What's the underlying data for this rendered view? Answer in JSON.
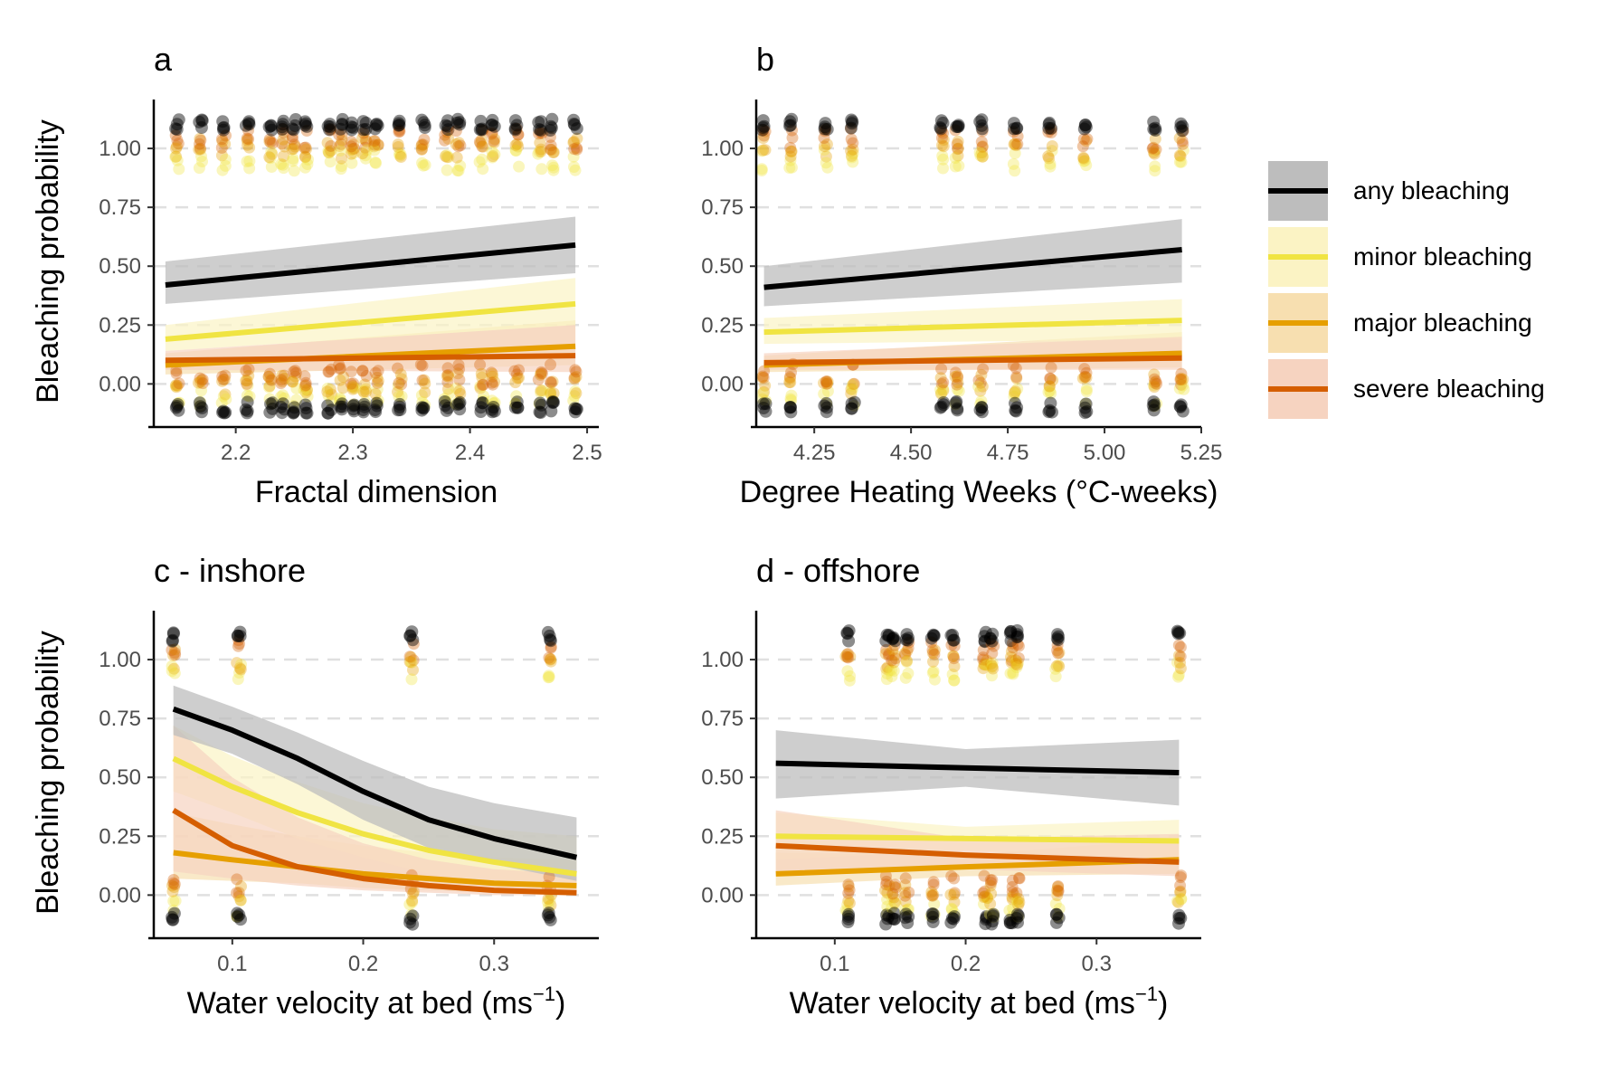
{
  "legend": {
    "items": [
      {
        "label": "any bleaching",
        "color": "#000000",
        "ribbon": "#bdbdbd"
      },
      {
        "label": "minor bleaching",
        "color": "#f0e442",
        "ribbon": "#fbf3c4"
      },
      {
        "label": "major bleaching",
        "color": "#e69f00",
        "ribbon": "#f7dfb0"
      },
      {
        "label": "severe bleaching",
        "color": "#d55e00",
        "ribbon": "#f6d3c0"
      }
    ]
  },
  "chart_data": [
    {
      "type": "line",
      "title": "a",
      "xlabel": "Fractal dimension",
      "ylabel": "Bleaching probability",
      "xlim": [
        2.13,
        2.51
      ],
      "ylim": [
        -0.16,
        1.2
      ],
      "xticks": [
        2.2,
        2.3,
        2.4,
        2.5
      ],
      "xticklabels": [
        "2.2",
        "2.3",
        "2.4",
        "2.5"
      ],
      "yticks": [
        0,
        0.25,
        0.5,
        0.75,
        1.0
      ],
      "yticklabels": [
        "0.00",
        "0.25",
        "0.50",
        "0.75",
        "1.00"
      ],
      "grid": "horizontal-dashed",
      "series": [
        {
          "name": "any bleaching",
          "x": [
            2.14,
            2.49
          ],
          "y": [
            0.42,
            0.59
          ],
          "lower": [
            0.34,
            0.47
          ],
          "upper": [
            0.52,
            0.71
          ]
        },
        {
          "name": "minor bleaching",
          "x": [
            2.14,
            2.49
          ],
          "y": [
            0.19,
            0.34
          ],
          "lower": [
            0.14,
            0.25
          ],
          "upper": [
            0.25,
            0.45
          ]
        },
        {
          "name": "major bleaching",
          "x": [
            2.14,
            2.49
          ],
          "y": [
            0.08,
            0.16
          ],
          "lower": [
            0.04,
            0.08
          ],
          "upper": [
            0.13,
            0.27
          ]
        },
        {
          "name": "severe bleaching",
          "x": [
            2.14,
            2.49
          ],
          "y": [
            0.1,
            0.12
          ],
          "lower": [
            0.06,
            0.05
          ],
          "upper": [
            0.14,
            0.25
          ]
        }
      ],
      "observations_x": [
        2.15,
        2.17,
        2.19,
        2.21,
        2.23,
        2.24,
        2.25,
        2.26,
        2.28,
        2.29,
        2.3,
        2.31,
        2.32,
        2.34,
        2.36,
        2.38,
        2.39,
        2.41,
        2.42,
        2.44,
        2.46,
        2.47,
        2.49
      ]
    },
    {
      "type": "line",
      "title": "b",
      "xlabel": "Degree Heating Weeks (°C-weeks)",
      "ylabel": "",
      "xlim": [
        4.1,
        5.25
      ],
      "ylim": [
        -0.16,
        1.2
      ],
      "xticks": [
        4.25,
        4.5,
        4.75,
        5.0,
        5.25
      ],
      "xticklabels": [
        "4.25",
        "4.50",
        "4.75",
        "5.00",
        "5.25"
      ],
      "yticks": [
        0,
        0.25,
        0.5,
        0.75,
        1.0
      ],
      "yticklabels": [
        "0.00",
        "0.25",
        "0.50",
        "0.75",
        "1.00"
      ],
      "grid": "horizontal-dashed",
      "series": [
        {
          "name": "any bleaching",
          "x": [
            4.12,
            5.2
          ],
          "y": [
            0.41,
            0.57
          ],
          "lower": [
            0.33,
            0.43
          ],
          "upper": [
            0.5,
            0.7
          ]
        },
        {
          "name": "minor bleaching",
          "x": [
            4.12,
            5.2
          ],
          "y": [
            0.22,
            0.27
          ],
          "lower": [
            0.17,
            0.19
          ],
          "upper": [
            0.28,
            0.36
          ]
        },
        {
          "name": "major bleaching",
          "x": [
            4.12,
            5.2
          ],
          "y": [
            0.08,
            0.13
          ],
          "lower": [
            0.05,
            0.07
          ],
          "upper": [
            0.12,
            0.22
          ]
        },
        {
          "name": "severe bleaching",
          "x": [
            4.12,
            5.2
          ],
          "y": [
            0.09,
            0.11
          ],
          "lower": [
            0.06,
            0.06
          ],
          "upper": [
            0.13,
            0.2
          ]
        }
      ],
      "observations_x": [
        4.12,
        4.19,
        4.28,
        4.35,
        4.58,
        4.62,
        4.68,
        4.77,
        4.86,
        4.95,
        5.13,
        5.2
      ]
    },
    {
      "type": "line",
      "title": "c - inshore",
      "xlabel": "Water velocity at bed (ms",
      "xlabel_sup": "−1",
      "xlabel_end": ")",
      "ylabel": "Bleaching probability",
      "xlim": [
        0.04,
        0.38
      ],
      "ylim": [
        -0.16,
        1.2
      ],
      "xticks": [
        0.1,
        0.2,
        0.3
      ],
      "xticklabels": [
        "0.1",
        "0.2",
        "0.3"
      ],
      "yticks": [
        0,
        0.25,
        0.5,
        0.75,
        1.0
      ],
      "yticklabels": [
        "0.00",
        "0.25",
        "0.50",
        "0.75",
        "1.00"
      ],
      "grid": "horizontal-dashed",
      "series": [
        {
          "name": "any bleaching",
          "x": [
            0.055,
            0.1,
            0.15,
            0.2,
            0.25,
            0.3,
            0.363
          ],
          "y": [
            0.79,
            0.7,
            0.58,
            0.44,
            0.32,
            0.24,
            0.16
          ],
          "lower": [
            0.68,
            0.6,
            0.47,
            0.32,
            0.2,
            0.13,
            0.06
          ],
          "upper": [
            0.89,
            0.8,
            0.69,
            0.57,
            0.46,
            0.39,
            0.33
          ]
        },
        {
          "name": "minor bleaching",
          "x": [
            0.055,
            0.1,
            0.15,
            0.2,
            0.25,
            0.3,
            0.363
          ],
          "y": [
            0.58,
            0.46,
            0.35,
            0.26,
            0.19,
            0.14,
            0.09
          ],
          "lower": [
            0.44,
            0.35,
            0.24,
            0.16,
            0.09,
            0.05,
            0.02
          ],
          "upper": [
            0.72,
            0.59,
            0.48,
            0.39,
            0.33,
            0.28,
            0.25
          ]
        },
        {
          "name": "major bleaching",
          "x": [
            0.055,
            0.1,
            0.15,
            0.2,
            0.25,
            0.3,
            0.363
          ],
          "y": [
            0.18,
            0.15,
            0.12,
            0.09,
            0.07,
            0.05,
            0.04
          ],
          "lower": [
            0.07,
            0.06,
            0.05,
            0.03,
            0.02,
            0.01,
            0.0
          ],
          "upper": [
            0.35,
            0.3,
            0.25,
            0.21,
            0.18,
            0.16,
            0.15
          ]
        },
        {
          "name": "severe bleaching",
          "x": [
            0.055,
            0.1,
            0.15,
            0.2,
            0.25,
            0.3,
            0.363
          ],
          "y": [
            0.36,
            0.21,
            0.12,
            0.07,
            0.04,
            0.02,
            0.01
          ],
          "lower": [
            0.1,
            0.07,
            0.04,
            0.02,
            0.01,
            0.0,
            0.0
          ],
          "upper": [
            0.72,
            0.5,
            0.33,
            0.22,
            0.15,
            0.11,
            0.09
          ]
        }
      ],
      "observations_x": [
        0.055,
        0.105,
        0.237,
        0.342
      ]
    },
    {
      "type": "line",
      "title": "d - offshore",
      "xlabel": "Water velocity at bed (ms",
      "xlabel_sup": "−1",
      "xlabel_end": ")",
      "ylabel": "",
      "xlim": [
        0.04,
        0.38
      ],
      "ylim": [
        -0.16,
        1.2
      ],
      "xticks": [
        0.1,
        0.2,
        0.3
      ],
      "xticklabels": [
        "0.1",
        "0.2",
        "0.3"
      ],
      "yticks": [
        0,
        0.25,
        0.5,
        0.75,
        1.0
      ],
      "yticklabels": [
        "0.00",
        "0.25",
        "0.50",
        "0.75",
        "1.00"
      ],
      "grid": "horizontal-dashed",
      "series": [
        {
          "name": "any bleaching",
          "x": [
            0.055,
            0.2,
            0.363
          ],
          "y": [
            0.56,
            0.54,
            0.52
          ],
          "lower": [
            0.41,
            0.46,
            0.38
          ],
          "upper": [
            0.7,
            0.62,
            0.66
          ]
        },
        {
          "name": "minor bleaching",
          "x": [
            0.055,
            0.2,
            0.363
          ],
          "y": [
            0.25,
            0.24,
            0.23
          ],
          "lower": [
            0.15,
            0.19,
            0.15
          ],
          "upper": [
            0.35,
            0.29,
            0.32
          ]
        },
        {
          "name": "major bleaching",
          "x": [
            0.055,
            0.2,
            0.363
          ],
          "y": [
            0.09,
            0.12,
            0.15
          ],
          "lower": [
            0.04,
            0.08,
            0.09
          ],
          "upper": [
            0.18,
            0.17,
            0.24
          ]
        },
        {
          "name": "severe bleaching",
          "x": [
            0.055,
            0.2,
            0.363
          ],
          "y": [
            0.21,
            0.17,
            0.14
          ],
          "lower": [
            0.1,
            0.11,
            0.08
          ],
          "upper": [
            0.36,
            0.24,
            0.26
          ]
        }
      ],
      "observations_x": [
        0.11,
        0.14,
        0.145,
        0.155,
        0.175,
        0.19,
        0.215,
        0.22,
        0.235,
        0.24,
        0.27,
        0.363
      ]
    }
  ]
}
